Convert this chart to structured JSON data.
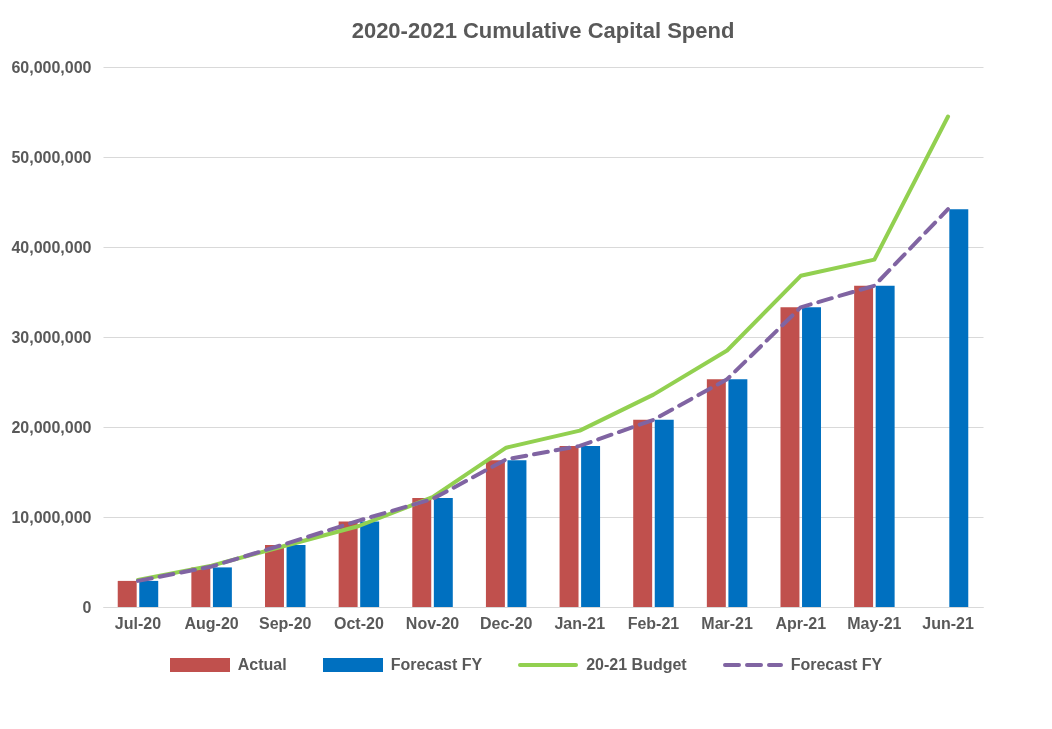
{
  "chart_data": {
    "type": "bar",
    "title": "2020-2021 Cumulative Capital Spend",
    "categories": [
      "Jul-20",
      "Aug-20",
      "Sep-20",
      "Oct-20",
      "Nov-20",
      "Dec-20",
      "Jan-21",
      "Feb-21",
      "Mar-21",
      "Apr-21",
      "May-21",
      "Jun-21"
    ],
    "series": [
      {
        "name": "Actual",
        "color": "#c0504d",
        "values": [
          2900000,
          4400000,
          6900000,
          9500000,
          12100000,
          16300000,
          17900000,
          20800000,
          25300000,
          33300000,
          35700000,
          null
        ]
      },
      {
        "name": "Forecast FY",
        "color": "#0070c0",
        "values": [
          2900000,
          4400000,
          6900000,
          9500000,
          12100000,
          16300000,
          17900000,
          20800000,
          25300000,
          33300000,
          35700000,
          44200000
        ]
      },
      {
        "name": "20-21 Budget",
        "type": "line",
        "line_style": "solid",
        "color": "#92d050",
        "values": [
          3000000,
          4600000,
          6800000,
          9000000,
          12200000,
          17700000,
          19600000,
          23600000,
          28500000,
          36800000,
          38600000,
          54500000
        ]
      },
      {
        "name": "Forecast FY",
        "type": "line",
        "line_style": "dashed",
        "color": "#8064a2",
        "values": [
          2900000,
          4500000,
          7000000,
          9600000,
          12000000,
          16400000,
          17900000,
          20800000,
          25300000,
          33300000,
          35700000,
          44200000
        ]
      }
    ],
    "ylim": [
      0,
      60000000
    ],
    "yticks": [
      0,
      {
        "value": 10000000,
        "label": "10,000,000"
      },
      {
        "value": 20000000,
        "label": "20,000,000"
      },
      {
        "value": 30000000,
        "label": "30,000,000"
      },
      {
        "value": 40000000,
        "label": "40,000,000"
      },
      {
        "value": 50000000,
        "label": "50,000,000"
      },
      {
        "value": 60000000,
        "label": "60,000,000"
      }
    ],
    "grid": "y",
    "legend": "bottom"
  }
}
